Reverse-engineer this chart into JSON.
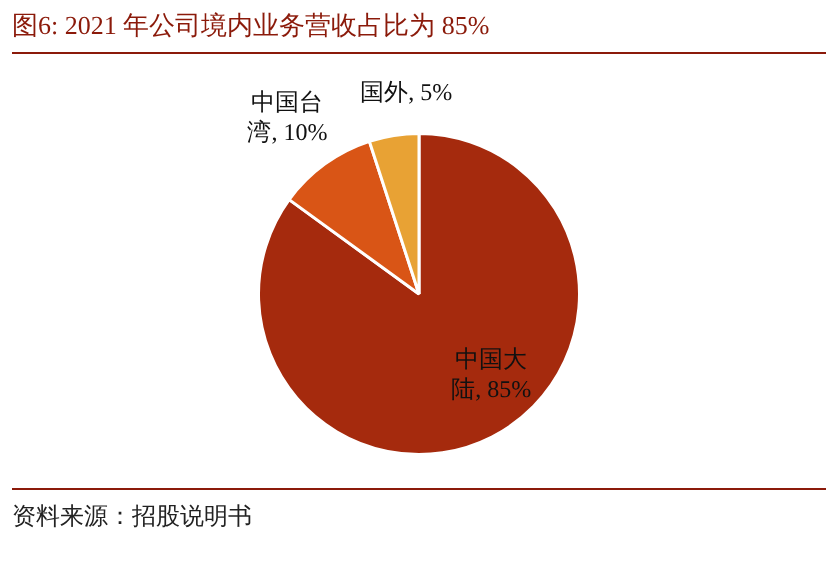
{
  "chart_data": {
    "type": "pie",
    "title": "图6:  2021 年公司境内业务营收占比为 85%",
    "categories": [
      "中国大陆",
      "中国台湾",
      "国外"
    ],
    "values": [
      85,
      10,
      5
    ],
    "colors": [
      "#a52a0d",
      "#d95516",
      "#e8a234"
    ],
    "value_labels": [
      "85%",
      "10%",
      "5%"
    ],
    "legend": false,
    "annotations": [
      "资料来源：招股说明书"
    ]
  }
}
